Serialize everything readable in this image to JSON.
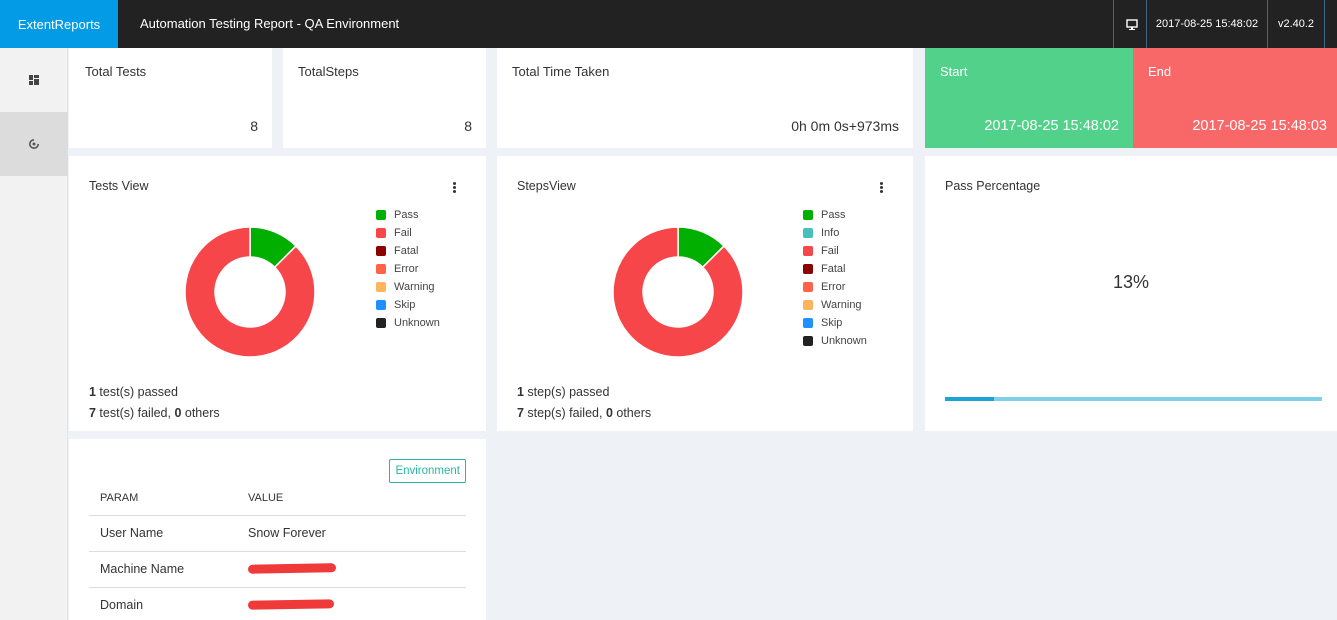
{
  "app": {
    "brand": "ExtentReports",
    "title": "Automation Testing Report - QA Environment",
    "datetime": "2017-08-25 15:48:02",
    "version": "v2.40.2"
  },
  "sidebar": {
    "items": [
      {
        "name": "dashboard",
        "icon": "dashboard-icon",
        "active": false
      },
      {
        "name": "tests",
        "icon": "spinner-icon",
        "active": true
      }
    ]
  },
  "stats": {
    "total_tests": {
      "label": "Total Tests",
      "value": "8"
    },
    "total_steps": {
      "label": "TotalSteps",
      "value": "8"
    },
    "time_taken": {
      "label": "Total Time Taken",
      "value": "0h 0m 0s+973ms"
    },
    "start": {
      "label": "Start",
      "value": "2017-08-25 15:48:02",
      "color": "#52d18a"
    },
    "end": {
      "label": "End",
      "value": "2017-08-25 15:48:03",
      "color": "#f96868"
    }
  },
  "tests_view": {
    "title": "Tests View",
    "legend": [
      {
        "label": "Pass",
        "color": "#00af00"
      },
      {
        "label": "Fail",
        "color": "#f7464a"
      },
      {
        "label": "Fatal",
        "color": "#8b0000"
      },
      {
        "label": "Error",
        "color": "#ff6347"
      },
      {
        "label": "Warning",
        "color": "#fdb45c"
      },
      {
        "label": "Skip",
        "color": "#1e90ff"
      },
      {
        "label": "Unknown",
        "color": "#222222"
      }
    ],
    "passed_count": "1",
    "passed_text": " test(s) passed",
    "failed_count": "7",
    "failed_text": " test(s) failed, ",
    "others_count": "0",
    "others_text": " others"
  },
  "steps_view": {
    "title": "StepsView",
    "legend": [
      {
        "label": "Pass",
        "color": "#00af00"
      },
      {
        "label": "Info",
        "color": "#46bfbd"
      },
      {
        "label": "Fail",
        "color": "#f7464a"
      },
      {
        "label": "Fatal",
        "color": "#8b0000"
      },
      {
        "label": "Error",
        "color": "#ff6347"
      },
      {
        "label": "Warning",
        "color": "#fdb45c"
      },
      {
        "label": "Skip",
        "color": "#1e90ff"
      },
      {
        "label": "Unknown",
        "color": "#222222"
      }
    ],
    "passed_count": "1",
    "passed_text": " step(s) passed",
    "failed_count": "7",
    "failed_text": " step(s) failed, ",
    "others_count": "0",
    "others_text": " others"
  },
  "chart_data": [
    {
      "type": "pie",
      "categories": [
        "Pass",
        "Fail"
      ],
      "values": [
        1,
        7
      ],
      "colors": [
        "#00af00",
        "#f7464a"
      ]
    },
    {
      "type": "pie",
      "categories": [
        "Pass",
        "Fail"
      ],
      "values": [
        1,
        7
      ],
      "colors": [
        "#00af00",
        "#f7464a"
      ]
    }
  ],
  "pass_percentage": {
    "title": "Pass Percentage",
    "value": "13%",
    "fraction": 0.13
  },
  "environment": {
    "badge": "Environment",
    "headers": {
      "param": "PARAM",
      "value": "VALUE"
    },
    "rows": [
      {
        "param": "User Name",
        "value": "Snow Forever"
      },
      {
        "param": "Machine Name",
        "value": ""
      },
      {
        "param": "Domain",
        "value": ""
      }
    ]
  }
}
